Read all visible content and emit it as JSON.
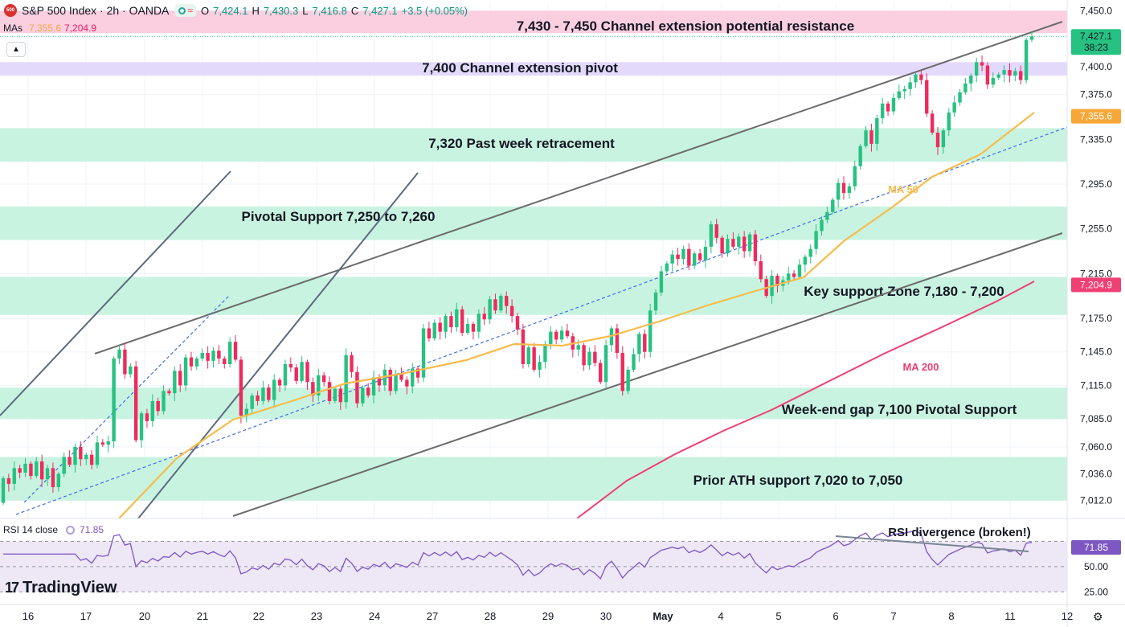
{
  "header": {
    "symbol_badge": "500",
    "title": "S&P 500 Index · 2h · OANDA",
    "ohlc": [
      {
        "key": "O",
        "value": "7,424.1"
      },
      {
        "key": "H",
        "value": "7,430.3"
      },
      {
        "key": "L",
        "value": "7,416.8"
      },
      {
        "key": "C",
        "value": "7,427.1"
      },
      {
        "key": "",
        "value": "+3.5 (+0.05%)"
      }
    ],
    "mas_label": "MAs",
    "ma50_value": "7,355.6",
    "ma200_value": "7,204.9",
    "collapse_icon": "chevron-up-icon"
  },
  "rsi": {
    "label": "RSI 14 close",
    "value": "71.85",
    "scale_labels": [
      "50.00",
      "25.00"
    ],
    "last_label": "71.85",
    "annotation": "RSI divergence (broken!)",
    "color": "#7e57c2"
  },
  "brand": {
    "name": "TradingView",
    "mark": "17"
  },
  "colors": {
    "up": "#26c281",
    "down": "#ef2a5c",
    "ma50": "#f5bc4c",
    "ma200": "#ef3f73",
    "zone_green": "#c9f3e1",
    "zone_purple": "#e3d9fb",
    "zone_pink": "#fbcfe0"
  },
  "chart_data": {
    "type": "candlestick",
    "y_range": [
      6996,
      7456
    ],
    "y_ticks": [
      "7,450.0",
      "7,400.0",
      "7,375.0",
      "7,335.0",
      "7,295.0",
      "7,255.0",
      "7,215.0",
      "7,175.0",
      "7,145.0",
      "7,115.0",
      "7,085.0",
      "7,060.0",
      "7,036.0",
      "7,012.0"
    ],
    "x_labels": [
      "16",
      "17",
      "20",
      "21",
      "22",
      "23",
      "24",
      "27",
      "28",
      "29",
      "30",
      "May",
      "4",
      "5",
      "6",
      "7",
      "8",
      "11",
      "12"
    ],
    "price_labels": [
      {
        "text": "7,427.1",
        "sub": "38:23",
        "price": 7427.1,
        "color": "#26c281"
      },
      {
        "text": "7,355.6",
        "price": 7355.6,
        "color": "#f7a738"
      },
      {
        "text": "7,204.9",
        "price": 7204.9,
        "color": "#ef3f73"
      }
    ],
    "zones": [
      {
        "from": 7430,
        "to": 7450,
        "label": "7,430 - 7,450 Channel extension potential resistance",
        "kind": "pink"
      },
      {
        "from": 7392,
        "to": 7404,
        "label": "7,400 Channel extension pivot",
        "kind": "purple"
      },
      {
        "from": 7315,
        "to": 7345,
        "label": "7,320 Past week retracement",
        "kind": "green"
      },
      {
        "from": 7245,
        "to": 7275,
        "label": "Pivotal Support 7,250 to 7,260",
        "kind": "green"
      },
      {
        "from": 7178,
        "to": 7212,
        "label": "Key support Zone 7,180 - 7,200",
        "kind": "green"
      },
      {
        "from": 7085,
        "to": 7113,
        "label": "Week-end gap 7,100 Pivotal Support",
        "kind": "green"
      },
      {
        "from": 7012,
        "to": 7051,
        "label": "Prior ATH support 7,020 to 7,050",
        "kind": "green"
      }
    ],
    "ma_labels": [
      {
        "text": "MA 50",
        "color": "#f5bc4c"
      },
      {
        "text": "MA 200",
        "color": "#ef3f73"
      }
    ],
    "candles": [
      [
        7010,
        7032
      ],
      [
        7032,
        7027
      ],
      [
        7027,
        7041
      ],
      [
        7041,
        7037
      ],
      [
        7037,
        7045
      ],
      [
        7045,
        7034
      ],
      [
        7034,
        7047
      ],
      [
        7047,
        7031
      ],
      [
        7031,
        7041
      ],
      [
        7041,
        7024
      ],
      [
        7024,
        7036
      ],
      [
        7036,
        7051
      ],
      [
        7051,
        7044
      ],
      [
        7044,
        7060
      ],
      [
        7060,
        7049
      ],
      [
        7049,
        7053
      ],
      [
        7053,
        7044
      ],
      [
        7044,
        7064
      ],
      [
        7064,
        7062
      ],
      [
        7062,
        7065
      ],
      [
        7065,
        7139
      ],
      [
        7139,
        7147
      ],
      [
        7147,
        7125
      ],
      [
        7125,
        7132
      ],
      [
        7132,
        7066
      ],
      [
        7066,
        7090
      ],
      [
        7090,
        7083
      ],
      [
        7083,
        7101
      ],
      [
        7101,
        7092
      ],
      [
        7092,
        7110
      ],
      [
        7110,
        7108
      ],
      [
        7108,
        7128
      ],
      [
        7128,
        7115
      ],
      [
        7115,
        7140
      ],
      [
        7140,
        7132
      ],
      [
        7132,
        7139
      ],
      [
        7139,
        7144
      ],
      [
        7144,
        7137
      ],
      [
        7137,
        7146
      ],
      [
        7146,
        7139
      ],
      [
        7139,
        7134
      ],
      [
        7134,
        7154
      ],
      [
        7154,
        7138
      ],
      [
        7138,
        7088
      ],
      [
        7088,
        7094
      ],
      [
        7094,
        7106
      ],
      [
        7106,
        7101
      ],
      [
        7101,
        7113
      ],
      [
        7113,
        7102
      ],
      [
        7102,
        7120
      ],
      [
        7120,
        7115
      ],
      [
        7115,
        7134
      ],
      [
        7134,
        7131
      ],
      [
        7131,
        7119
      ],
      [
        7119,
        7136
      ],
      [
        7136,
        7118
      ],
      [
        7118,
        7106
      ],
      [
        7106,
        7124
      ],
      [
        7124,
        7118
      ],
      [
        7118,
        7101
      ],
      [
        7101,
        7112
      ],
      [
        7112,
        7100
      ],
      [
        7100,
        7142
      ],
      [
        7142,
        7127
      ],
      [
        7127,
        7099
      ],
      [
        7099,
        7113
      ],
      [
        7113,
        7106
      ],
      [
        7106,
        7122
      ],
      [
        7122,
        7115
      ],
      [
        7115,
        7129
      ],
      [
        7129,
        7110
      ],
      [
        7110,
        7125
      ],
      [
        7125,
        7120
      ],
      [
        7120,
        7114
      ],
      [
        7114,
        7130
      ],
      [
        7130,
        7122
      ],
      [
        7122,
        7166
      ],
      [
        7166,
        7157
      ],
      [
        7157,
        7171
      ],
      [
        7171,
        7163
      ],
      [
        7163,
        7177
      ],
      [
        7177,
        7167
      ],
      [
        7167,
        7183
      ],
      [
        7183,
        7162
      ],
      [
        7162,
        7170
      ],
      [
        7170,
        7163
      ],
      [
        7163,
        7179
      ],
      [
        7179,
        7174
      ],
      [
        7174,
        7192
      ],
      [
        7192,
        7182
      ],
      [
        7182,
        7195
      ],
      [
        7195,
        7186
      ],
      [
        7186,
        7177
      ],
      [
        7177,
        7165
      ],
      [
        7165,
        7134
      ],
      [
        7134,
        7149
      ],
      [
        7149,
        7129
      ],
      [
        7129,
        7136
      ],
      [
        7136,
        7152
      ],
      [
        7152,
        7163
      ],
      [
        7163,
        7156
      ],
      [
        7156,
        7164
      ],
      [
        7164,
        7159
      ],
      [
        7159,
        7147
      ],
      [
        7147,
        7151
      ],
      [
        7151,
        7133
      ],
      [
        7133,
        7145
      ],
      [
        7145,
        7135
      ],
      [
        7135,
        7118
      ],
      [
        7118,
        7151
      ],
      [
        7151,
        7166
      ],
      [
        7166,
        7144
      ],
      [
        7144,
        7110
      ],
      [
        7110,
        7129
      ],
      [
        7129,
        7143
      ],
      [
        7143,
        7161
      ],
      [
        7161,
        7145
      ],
      [
        7145,
        7182
      ],
      [
        7182,
        7198
      ],
      [
        7198,
        7217
      ],
      [
        7217,
        7224
      ],
      [
        7224,
        7232
      ],
      [
        7232,
        7228
      ],
      [
        7228,
        7237
      ],
      [
        7237,
        7222
      ],
      [
        7222,
        7233
      ],
      [
        7233,
        7227
      ],
      [
        7227,
        7239
      ],
      [
        7239,
        7259
      ],
      [
        7259,
        7247
      ],
      [
        7247,
        7233
      ],
      [
        7233,
        7246
      ],
      [
        7246,
        7239
      ],
      [
        7239,
        7248
      ],
      [
        7248,
        7235
      ],
      [
        7235,
        7250
      ],
      [
        7250,
        7226
      ],
      [
        7226,
        7210
      ],
      [
        7210,
        7195
      ],
      [
        7195,
        7213
      ],
      [
        7213,
        7204
      ],
      [
        7204,
        7209
      ],
      [
        7209,
        7215
      ],
      [
        7215,
        7212
      ],
      [
        7212,
        7223
      ],
      [
        7223,
        7230
      ],
      [
        7230,
        7237
      ],
      [
        7237,
        7253
      ],
      [
        7253,
        7263
      ],
      [
        7263,
        7270
      ],
      [
        7270,
        7281
      ],
      [
        7281,
        7296
      ],
      [
        7296,
        7287
      ],
      [
        7287,
        7293
      ],
      [
        7293,
        7311
      ],
      [
        7311,
        7329
      ],
      [
        7329,
        7343
      ],
      [
        7343,
        7331
      ],
      [
        7331,
        7354
      ],
      [
        7354,
        7367
      ],
      [
        7367,
        7360
      ],
      [
        7360,
        7372
      ],
      [
        7372,
        7378
      ],
      [
        7378,
        7380
      ],
      [
        7380,
        7386
      ],
      [
        7386,
        7393
      ],
      [
        7393,
        7388
      ],
      [
        7388,
        7358
      ],
      [
        7358,
        7341
      ],
      [
        7341,
        7328
      ],
      [
        7328,
        7343
      ],
      [
        7343,
        7359
      ],
      [
        7359,
        7368
      ],
      [
        7368,
        7377
      ],
      [
        7377,
        7385
      ],
      [
        7385,
        7392
      ],
      [
        7392,
        7404
      ],
      [
        7404,
        7401
      ],
      [
        7401,
        7384
      ],
      [
        7384,
        7390
      ],
      [
        7390,
        7393
      ],
      [
        7393,
        7397
      ],
      [
        7397,
        7392
      ],
      [
        7392,
        7396
      ],
      [
        7396,
        7388
      ],
      [
        7388,
        7424
      ],
      [
        7424,
        7427
      ]
    ],
    "rsi_range": [
      20,
      85
    ]
  }
}
